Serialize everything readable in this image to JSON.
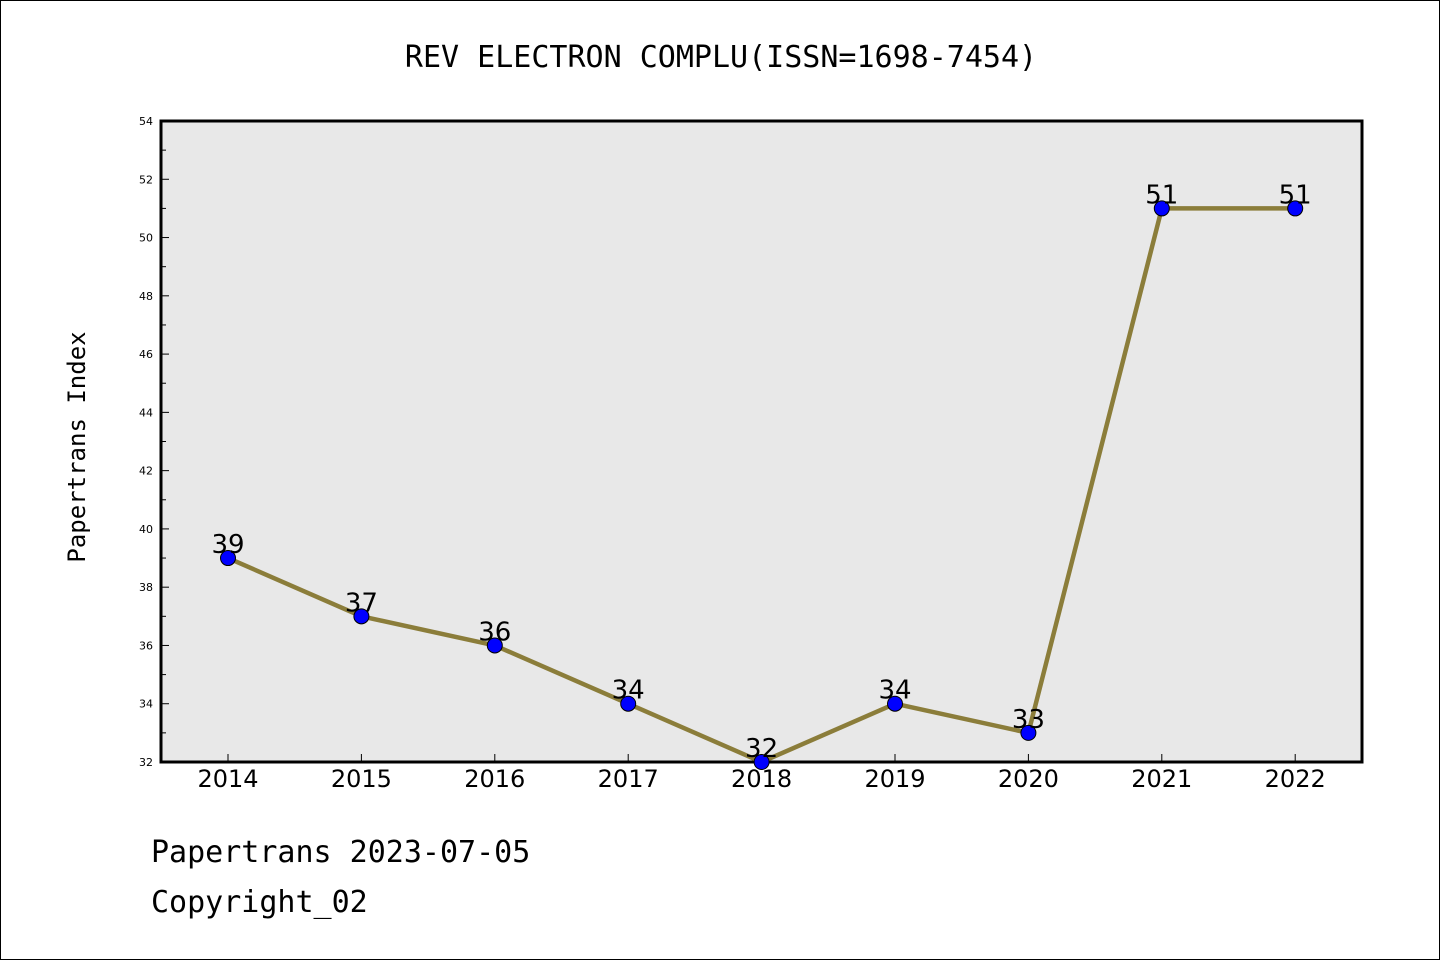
{
  "chart_data": {
    "type": "line",
    "title": "REV ELECTRON COMPLU(ISSN=1698-7454)",
    "xlabel": "",
    "ylabel": "Papertrans Index",
    "categories": [
      "2014",
      "2015",
      "2016",
      "2017",
      "2018",
      "2019",
      "2020",
      "2021",
      "2022"
    ],
    "series": [
      {
        "values": [
          39,
          37,
          36,
          34,
          32,
          34,
          33,
          51,
          51
        ]
      }
    ],
    "ylim": [
      32,
      54
    ],
    "yticks": [
      32,
      34,
      36,
      38,
      40,
      42,
      44,
      46,
      48,
      50,
      52,
      54
    ],
    "data_labels": true,
    "grid": false,
    "legend": "none",
    "colors": {
      "line": "#8b7d3a",
      "marker": "#0000ff",
      "plot_background": "#e8e8e8"
    }
  },
  "footer": {
    "line1": "Papertrans 2023-07-05",
    "line2": "Copyright_02"
  }
}
